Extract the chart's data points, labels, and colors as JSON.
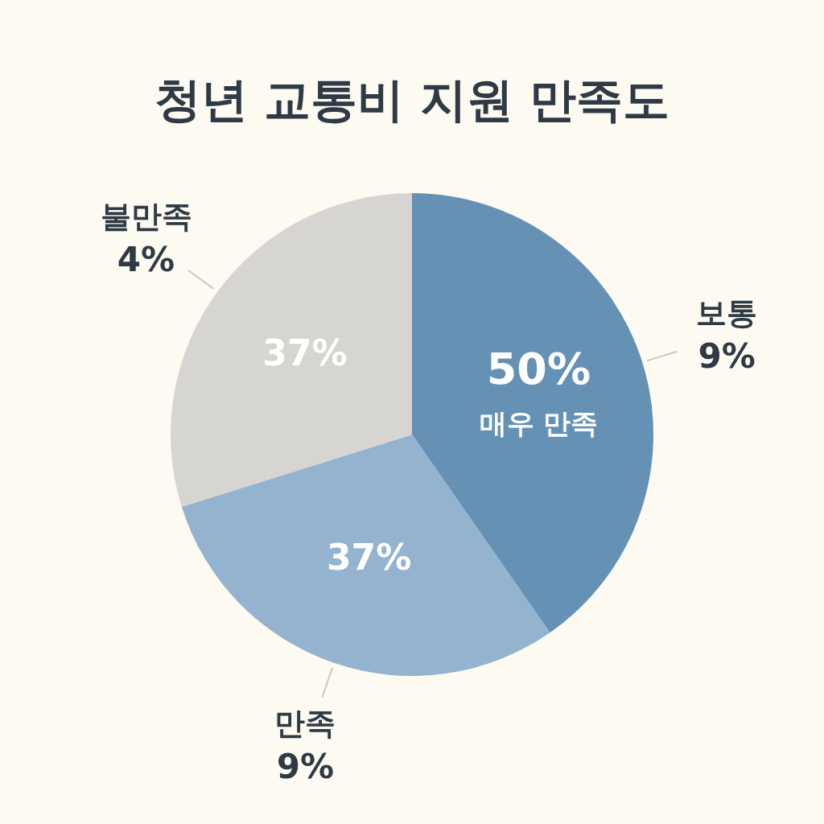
{
  "chart_data": {
    "type": "pie",
    "title": "청년 교통비 지원 만족도",
    "categories": [
      "매우 만족",
      null,
      null
    ],
    "values": [
      50,
      37,
      37
    ],
    "value_labels": [
      "50%",
      "37%",
      "37%"
    ],
    "colors": [
      "#6591b5",
      "#93b3cf",
      "#d6d5d1"
    ],
    "annotations": [
      "보통",
      "9%",
      "만족",
      "9%",
      "불만족",
      "4%"
    ]
  }
}
